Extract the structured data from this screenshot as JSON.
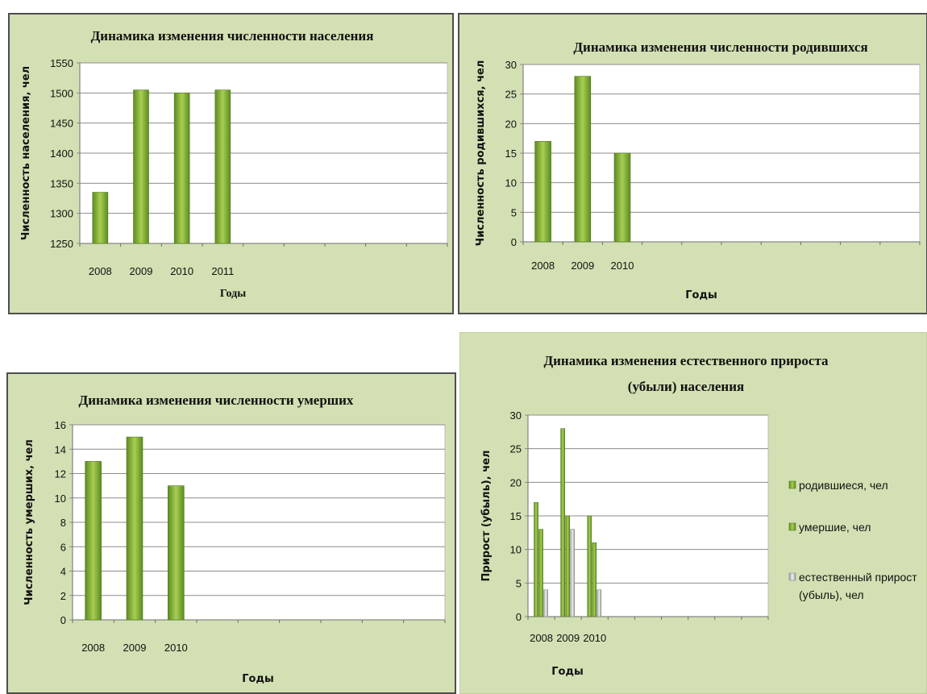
{
  "colors": {
    "panel_bg": "#d3e0b3",
    "bar_green_dark": "#5d8a22",
    "bar_green_light": "#a8cf52",
    "bar_gray_dark": "#9a9a9a",
    "bar_gray_light": "#f0f0f0"
  },
  "chart_data": [
    {
      "type": "bar",
      "title": "Динамика изменения численности населения",
      "xlabel": "Годы",
      "ylabel": "Численность населения, чел",
      "categories": [
        "2008",
        "2009",
        "2010",
        "2011"
      ],
      "values": [
        1335,
        1505,
        1500,
        1505
      ],
      "ylim": [
        1250,
        1550
      ],
      "yticks": [
        1250,
        1300,
        1350,
        1400,
        1450,
        1500,
        1550
      ],
      "grid": true
    },
    {
      "type": "bar",
      "title": "Динамика изменения численности родившихся",
      "xlabel": "Годы",
      "ylabel": "Численность родившихся, чел",
      "categories": [
        "2008",
        "2009",
        "2010"
      ],
      "values": [
        17,
        28,
        15
      ],
      "ylim": [
        0,
        30
      ],
      "yticks": [
        0,
        5,
        10,
        15,
        20,
        25,
        30
      ],
      "grid": true
    },
    {
      "type": "bar",
      "title": "Динамика изменения численности умерших",
      "xlabel": "Годы",
      "ylabel": "Численность умерших, чел",
      "categories": [
        "2008",
        "2009",
        "2010"
      ],
      "values": [
        13,
        15,
        11
      ],
      "ylim": [
        0,
        16
      ],
      "yticks": [
        0,
        2,
        4,
        6,
        8,
        10,
        12,
        14,
        16
      ],
      "grid": true
    },
    {
      "type": "bar",
      "title": [
        "Динамика изменения естественного прироста",
        "(убыли) населения"
      ],
      "xlabel": "Годы",
      "ylabel": "Прирост (убыль), чел",
      "categories": [
        "2008",
        "2009",
        "2010"
      ],
      "series": [
        {
          "name": "родившиеся, чел",
          "values": [
            17,
            28,
            15
          ]
        },
        {
          "name": "умершие, чел",
          "values": [
            13,
            15,
            11
          ]
        },
        {
          "name": [
            "естественный прирост",
            "(убыль), чел"
          ],
          "values": [
            4,
            13,
            4
          ]
        }
      ],
      "ylim": [
        0,
        30
      ],
      "yticks": [
        0,
        5,
        10,
        15,
        20,
        25,
        30
      ],
      "grid": true,
      "legend": "right"
    }
  ]
}
